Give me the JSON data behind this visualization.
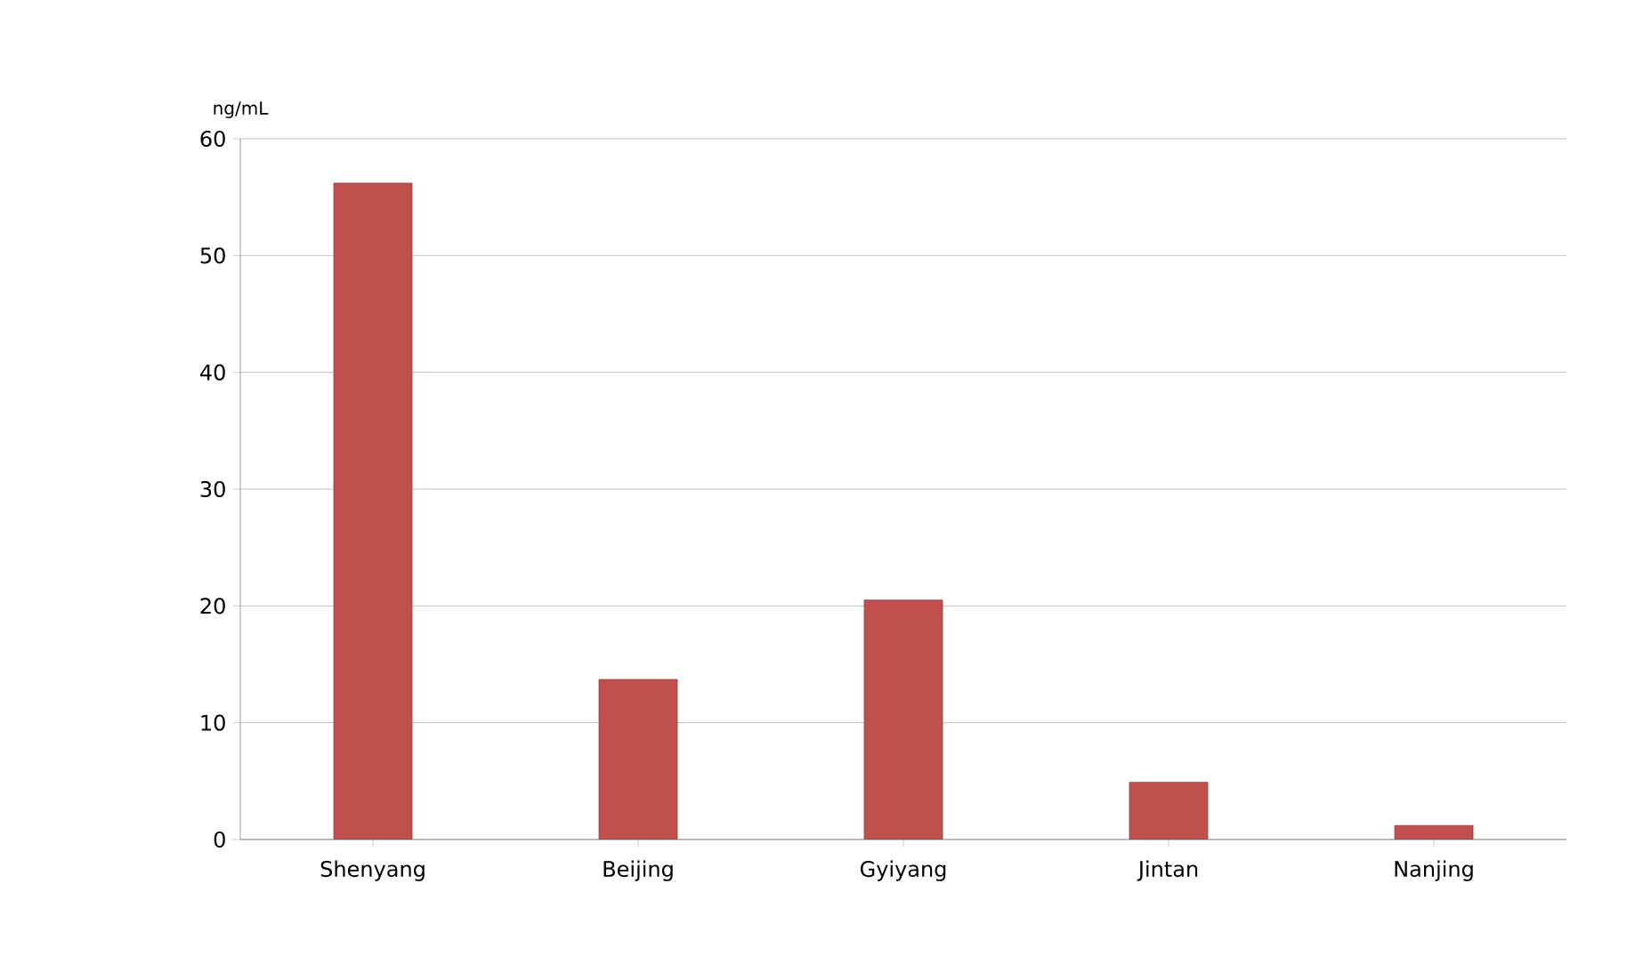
{
  "chart_data": {
    "type": "bar",
    "ylabel": "ng/mL",
    "categories": [
      "Shenyang",
      "Beijing",
      "Gyiyang",
      "Jintan",
      "Nanjing"
    ],
    "values": [
      56.2,
      13.7,
      20.5,
      4.9,
      1.2
    ],
    "color": "#c0504d",
    "ylim": [
      0,
      60
    ],
    "yticks": [
      0,
      10,
      20,
      30,
      40,
      50,
      60
    ],
    "grid": "y"
  }
}
